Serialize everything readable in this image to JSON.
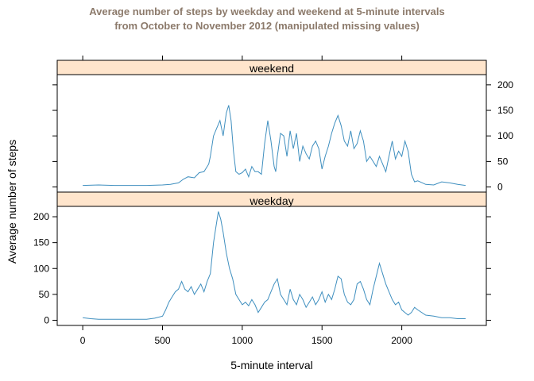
{
  "title_line1": "Average number of steps by weekday and weekend at 5-minute intervals",
  "title_line2": "from October to November 2012 (manipulated missing values)",
  "chart_data": {
    "type": "line",
    "title": "Average number of steps by weekday and weekend at 5-minute intervals from October to November 2012 (manipulated missing values)",
    "xlabel": "5-minute interval",
    "ylabel": "Average number of steps",
    "xlim": [
      -160,
      2530
    ],
    "ylim": [
      -10,
      220
    ],
    "x_ticks": [
      0,
      500,
      1000,
      1500,
      2000
    ],
    "y_ticks": [
      0,
      50,
      100,
      150,
      200
    ],
    "line_color": "#3f8fbf",
    "strip_color": "#ffe5cc",
    "panels": [
      {
        "name": "weekend",
        "x": [
          0,
          100,
          200,
          300,
          400,
          500,
          550,
          600,
          630,
          660,
          700,
          730,
          760,
          790,
          800,
          820,
          840,
          860,
          880,
          900,
          915,
          930,
          945,
          960,
          980,
          1000,
          1020,
          1040,
          1060,
          1080,
          1100,
          1120,
          1140,
          1160,
          1180,
          1200,
          1210,
          1220,
          1240,
          1260,
          1280,
          1300,
          1320,
          1340,
          1360,
          1380,
          1400,
          1420,
          1440,
          1460,
          1480,
          1500,
          1520,
          1540,
          1560,
          1580,
          1600,
          1620,
          1640,
          1660,
          1680,
          1700,
          1720,
          1740,
          1760,
          1780,
          1800,
          1820,
          1840,
          1860,
          1880,
          1900,
          1920,
          1940,
          1960,
          1980,
          2000,
          2020,
          2040,
          2060,
          2080,
          2100,
          2150,
          2200,
          2250,
          2300,
          2350,
          2400
        ],
        "y": [
          3,
          4,
          3,
          3,
          3,
          4,
          5,
          8,
          15,
          20,
          18,
          28,
          30,
          45,
          60,
          100,
          115,
          130,
          100,
          145,
          160,
          130,
          70,
          30,
          25,
          28,
          35,
          20,
          40,
          30,
          30,
          25,
          85,
          130,
          90,
          40,
          30,
          60,
          105,
          100,
          60,
          110,
          75,
          105,
          50,
          80,
          65,
          55,
          80,
          90,
          75,
          35,
          60,
          80,
          105,
          125,
          140,
          120,
          90,
          80,
          110,
          75,
          85,
          110,
          90,
          50,
          60,
          50,
          40,
          60,
          45,
          30,
          60,
          90,
          55,
          70,
          60,
          90,
          70,
          25,
          10,
          12,
          5,
          4,
          10,
          8,
          5,
          3
        ]
      },
      {
        "name": "weekday",
        "x": [
          0,
          50,
          100,
          200,
          300,
          400,
          450,
          500,
          520,
          540,
          560,
          580,
          600,
          620,
          640,
          660,
          680,
          700,
          720,
          740,
          760,
          780,
          800,
          820,
          835,
          850,
          865,
          880,
          900,
          920,
          940,
          960,
          980,
          1000,
          1020,
          1040,
          1060,
          1080,
          1100,
          1120,
          1140,
          1160,
          1180,
          1200,
          1220,
          1240,
          1260,
          1280,
          1300,
          1320,
          1340,
          1360,
          1380,
          1400,
          1420,
          1440,
          1460,
          1480,
          1500,
          1520,
          1540,
          1560,
          1580,
          1600,
          1620,
          1640,
          1660,
          1680,
          1700,
          1720,
          1740,
          1760,
          1780,
          1800,
          1820,
          1840,
          1860,
          1880,
          1900,
          1920,
          1940,
          1960,
          1980,
          2000,
          2020,
          2040,
          2060,
          2080,
          2100,
          2150,
          2200,
          2250,
          2300,
          2350,
          2400
        ],
        "y": [
          5,
          3,
          2,
          2,
          2,
          2,
          4,
          8,
          20,
          35,
          45,
          55,
          60,
          75,
          60,
          55,
          65,
          50,
          60,
          70,
          55,
          75,
          90,
          150,
          180,
          210,
          195,
          170,
          130,
          100,
          80,
          50,
          40,
          30,
          35,
          28,
          40,
          30,
          15,
          25,
          35,
          40,
          55,
          70,
          80,
          50,
          40,
          30,
          60,
          40,
          30,
          50,
          40,
          25,
          35,
          45,
          30,
          40,
          55,
          35,
          50,
          40,
          60,
          85,
          80,
          50,
          35,
          30,
          40,
          70,
          75,
          60,
          40,
          30,
          60,
          85,
          110,
          90,
          70,
          55,
          40,
          30,
          35,
          20,
          15,
          10,
          15,
          25,
          20,
          10,
          8,
          5,
          5,
          3,
          3
        ]
      }
    ]
  }
}
